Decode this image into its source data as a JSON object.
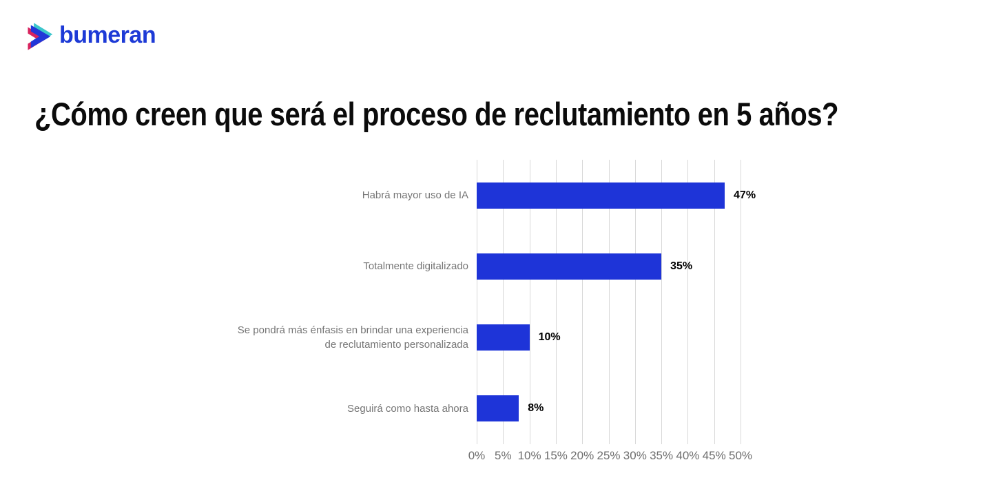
{
  "brand": {
    "logo_text": "bumeran",
    "logo_colors": {
      "text_blue": "#1d3ad6",
      "chevron_blue": "#2236d8",
      "chevron_teal": "#3cc6cc",
      "chevron_pink": "#d8245e"
    }
  },
  "title": "¿Cómo creen que será el proceso de reclutamiento en 5 años?",
  "chart_data": {
    "type": "bar",
    "orientation": "horizontal",
    "title": "¿Cómo creen que será el proceso de reclutamiento en 5 años?",
    "categories": [
      "Habrá mayor uso de IA",
      "Totalmente digitalizado",
      "Se pondrá más énfasis en brindar una experiencia de reclutamiento personalizada",
      "Seguirá como hasta ahora"
    ],
    "values": [
      47,
      35,
      10,
      8
    ],
    "value_labels": [
      "47%",
      "35%",
      "10%",
      "8%"
    ],
    "xticks": [
      "0%",
      "5%",
      "10%",
      "15%",
      "20%",
      "25%",
      "30%",
      "35%",
      "40%",
      "45%",
      "50%"
    ],
    "xtick_values": [
      0,
      5,
      10,
      15,
      20,
      25,
      30,
      35,
      40,
      45,
      50
    ],
    "xlim": [
      0,
      50
    ],
    "xlabel": "",
    "ylabel": "",
    "legend": "none",
    "grid": "vertical",
    "bar_color": "#1e34d8",
    "grid_color": "#d8d8d8",
    "category_label_color": "#757575",
    "tick_label_color": "#6e6e6e",
    "value_label_color": "#000000"
  }
}
